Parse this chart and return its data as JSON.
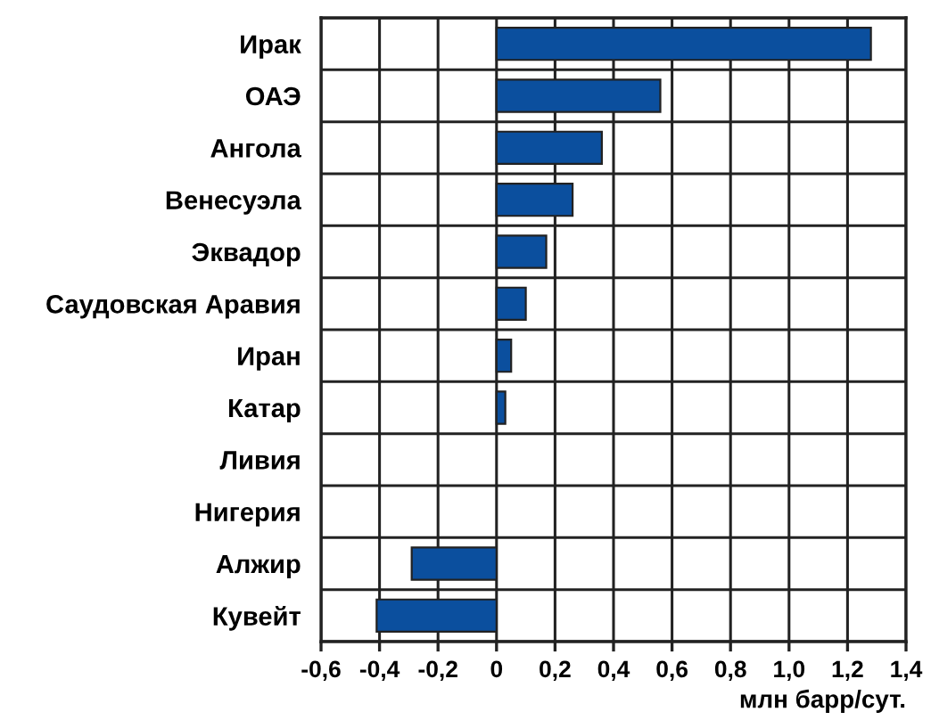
{
  "chart_data": {
    "type": "bar",
    "orientation": "horizontal",
    "xlabel": "млн барр/сут.",
    "categories": [
      "Ирак",
      "ОАЭ",
      "Ангола",
      "Венесуэла",
      "Эквадор",
      "Саудовская Аравия",
      "Иран",
      "Катар",
      "Ливия",
      "Нигерия",
      "Алжир",
      "Кувейт"
    ],
    "values": [
      1.28,
      0.56,
      0.36,
      0.26,
      0.17,
      0.1,
      0.05,
      0.03,
      0,
      0,
      -0.29,
      -0.41
    ],
    "color": "#0b4f9e",
    "xlim": [
      -0.6,
      1.4
    ],
    "xticks": [
      {
        "value": -0.6,
        "label": "-0,6"
      },
      {
        "value": -0.4,
        "label": "-0,4"
      },
      {
        "value": -0.2,
        "label": "-0,2"
      },
      0,
      {
        "value": 0.2,
        "label": "0,2"
      },
      {
        "value": 0.4,
        "label": "0,4"
      },
      {
        "value": 0.6,
        "label": "0,6"
      },
      {
        "value": 0.8,
        "label": "0,8"
      },
      {
        "value": 1.0,
        "label": "1,0"
      },
      {
        "value": 1.2,
        "label": "1,2"
      },
      {
        "value": 1.4,
        "label": "1,4"
      }
    ],
    "grid": true
  }
}
